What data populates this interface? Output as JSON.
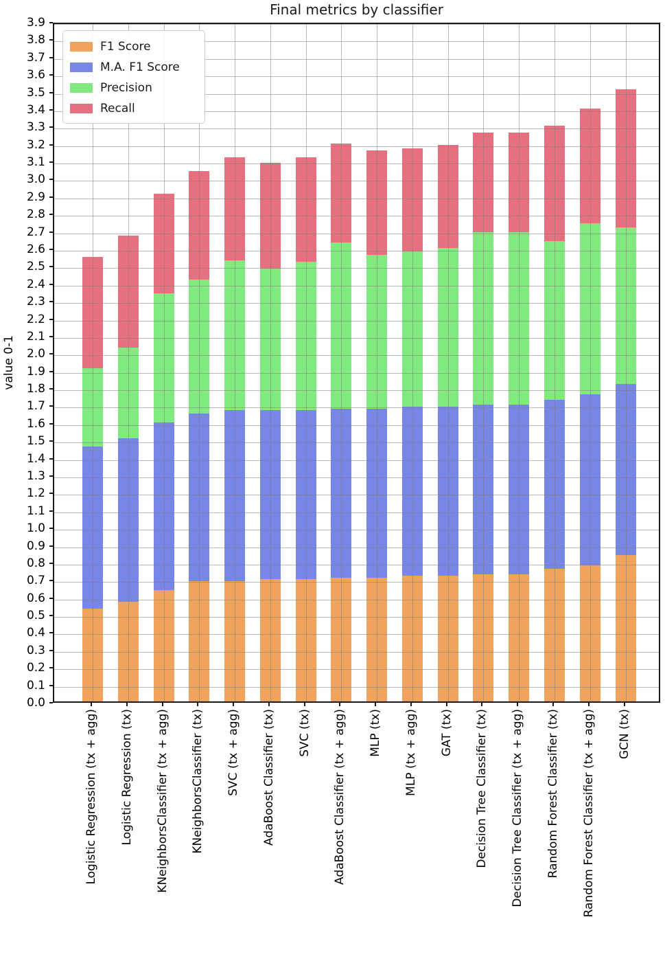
{
  "title": "Final metrics by classifier",
  "y_axis": {
    "label": "value 0-1",
    "ticks": [
      "0.0",
      "0.1",
      "0.2",
      "0.3",
      "0.4",
      "0.5",
      "0.6",
      "0.7",
      "0.8",
      "0.9",
      "1.0",
      "1.1",
      "1.2",
      "1.3",
      "1.4",
      "1.5",
      "1.6",
      "1.7",
      "1.8",
      "1.9",
      "2.0",
      "2.1",
      "2.2",
      "2.3",
      "2.4",
      "2.5",
      "2.6",
      "2.7",
      "2.8",
      "2.9",
      "3.0",
      "3.1",
      "3.2",
      "3.3",
      "3.4",
      "3.5",
      "3.6",
      "3.7",
      "3.8",
      "3.9"
    ]
  },
  "chart_data": {
    "type": "bar",
    "stacked": true,
    "title": "Final metrics by classifier",
    "ylabel": "value 0-1",
    "ylim": [
      0,
      3.9
    ],
    "grid": true,
    "legend_position": "upper left",
    "categories": [
      "Logistic Regression (tx + agg)",
      "Logistic Regression (tx)",
      "KNeighborsClassifier (tx + agg)",
      "KNeighborsClassifier (tx)",
      "SVC (tx + agg)",
      "AdaBoost Classifier (tx)",
      "SVC (tx)",
      "AdaBoost Classifier (tx + agg)",
      "MLP (tx)",
      "MLP (tx + agg)",
      "GAT (tx)",
      "Decision Tree Classifier (tx)",
      "Decision Tree Classifier (tx + agg)",
      "Random Forest Classifier (tx)",
      "Random Forest Classifier (tx + agg)",
      "GCN (tx)"
    ],
    "series": [
      {
        "name": "F1 Score",
        "color": "#efa35c",
        "values": [
          0.53,
          0.57,
          0.64,
          0.69,
          0.69,
          0.7,
          0.7,
          0.71,
          0.71,
          0.72,
          0.72,
          0.73,
          0.73,
          0.76,
          0.78,
          0.84
        ]
      },
      {
        "name": "M.A. F1 Score",
        "color": "#7886e5",
        "values": [
          0.93,
          0.94,
          0.96,
          0.96,
          0.98,
          0.97,
          0.97,
          0.97,
          0.97,
          0.97,
          0.97,
          0.97,
          0.97,
          0.97,
          0.98,
          0.98
        ]
      },
      {
        "name": "Precision",
        "color": "#80ea80",
        "values": [
          0.45,
          0.52,
          0.74,
          0.77,
          0.86,
          0.81,
          0.85,
          0.95,
          0.88,
          0.89,
          0.91,
          0.99,
          0.99,
          0.91,
          0.98,
          0.9
        ]
      },
      {
        "name": "Recall",
        "color": "#e6707f",
        "values": [
          0.64,
          0.64,
          0.57,
          0.62,
          0.59,
          0.61,
          0.6,
          0.57,
          0.6,
          0.59,
          0.59,
          0.57,
          0.57,
          0.66,
          0.66,
          0.79
        ]
      }
    ]
  }
}
